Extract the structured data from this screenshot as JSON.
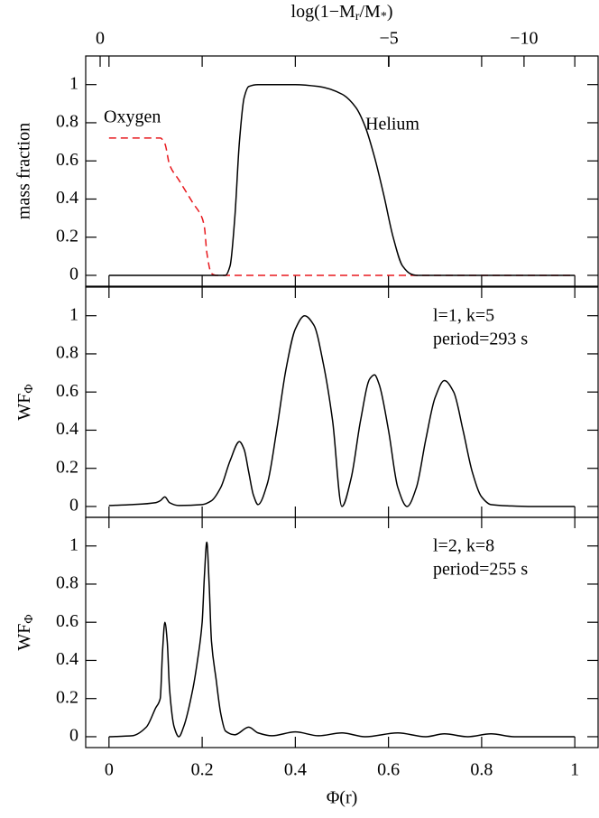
{
  "chart_data": [
    {
      "type": "line",
      "ylabel": "mass fraction",
      "x2label": [
        "log(1−M",
        "r",
        "/M",
        "*",
        ")"
      ],
      "x2ticks": [
        {
          "value": 0,
          "label": "0",
          "phi": -0.019
        },
        {
          "value": -5,
          "label": "−5",
          "phi": 0.601
        },
        {
          "value": -10,
          "label": "−10",
          "phi": 0.891
        }
      ],
      "xlim": [
        -0.05,
        1.05
      ],
      "ylim": [
        -0.057,
        1.15
      ],
      "xticks": [
        0,
        0.2,
        0.4,
        0.6,
        0.8,
        1
      ],
      "show_xtick_labels": false,
      "yticks": [
        0,
        0.2,
        0.4,
        0.6,
        0.8,
        1
      ],
      "x": [
        0,
        0.05,
        0.1,
        0.11,
        0.12,
        0.13,
        0.15,
        0.18,
        0.2,
        0.205,
        0.21,
        0.22,
        0.23,
        0.25,
        0.26,
        0.27,
        0.28,
        0.29,
        0.3,
        0.32,
        0.4,
        0.45,
        0.5,
        0.53,
        0.55,
        0.57,
        0.59,
        0.61,
        0.63,
        0.65,
        0.66,
        1.0
      ],
      "series": [
        {
          "name": "Oxygen",
          "color": "#e8191e",
          "linestyle": "dashed",
          "values": [
            0.72,
            0.72,
            0.72,
            0.72,
            0.69,
            0.58,
            0.5,
            0.38,
            0.3,
            0.25,
            0.12,
            0.01,
            0,
            0,
            0,
            0,
            0,
            0,
            0,
            0,
            0,
            0,
            0,
            0,
            0,
            0,
            0,
            0,
            0,
            0,
            0,
            0
          ]
        },
        {
          "name": "Helium",
          "color": "#000000",
          "linestyle": "solid",
          "values": [
            0,
            0,
            0,
            0,
            0,
            0,
            0,
            0,
            0,
            0,
            0,
            0,
            0,
            0,
            0.05,
            0.3,
            0.7,
            0.93,
            0.99,
            1.0,
            1.0,
            0.99,
            0.95,
            0.88,
            0.78,
            0.62,
            0.42,
            0.2,
            0.05,
            0.005,
            0,
            0
          ]
        }
      ]
    },
    {
      "type": "line",
      "ylabel": [
        "WF",
        "Φ"
      ],
      "annotations": [
        "l=1, k=5",
        "period=293 s"
      ],
      "xlim": [
        -0.05,
        1.05
      ],
      "ylim": [
        -0.057,
        1.15
      ],
      "xticks": [
        0,
        0.2,
        0.4,
        0.6,
        0.8,
        1
      ],
      "show_xtick_labels": false,
      "yticks": [
        0,
        0.2,
        0.4,
        0.6,
        0.8,
        1
      ],
      "x": [
        0,
        0.05,
        0.1,
        0.11,
        0.12,
        0.13,
        0.15,
        0.2,
        0.22,
        0.24,
        0.26,
        0.28,
        0.29,
        0.3,
        0.31,
        0.32,
        0.34,
        0.36,
        0.38,
        0.4,
        0.42,
        0.44,
        0.46,
        0.48,
        0.5,
        0.52,
        0.54,
        0.56,
        0.57,
        0.58,
        0.6,
        0.62,
        0.64,
        0.66,
        0.68,
        0.7,
        0.72,
        0.74,
        0.76,
        0.78,
        0.8,
        0.82,
        0.86,
        0.9,
        1.0
      ],
      "series": [
        {
          "color": "#000000",
          "linestyle": "solid",
          "values": [
            0.005,
            0.01,
            0.02,
            0.03,
            0.05,
            0.02,
            0.005,
            0.01,
            0.03,
            0.1,
            0.24,
            0.34,
            0.3,
            0.18,
            0.06,
            0.01,
            0.12,
            0.4,
            0.72,
            0.93,
            1.0,
            0.95,
            0.75,
            0.45,
            0.0,
            0.15,
            0.45,
            0.67,
            0.69,
            0.64,
            0.4,
            0.1,
            0.0,
            0.1,
            0.35,
            0.57,
            0.66,
            0.6,
            0.4,
            0.18,
            0.05,
            0.01,
            0.003,
            0,
            0
          ]
        }
      ]
    },
    {
      "type": "line",
      "ylabel": [
        "WF",
        "Φ"
      ],
      "annotations": [
        "l=2, k=8",
        "period=255 s"
      ],
      "xlabel": "Φ(r)",
      "xlim": [
        -0.05,
        1.05
      ],
      "ylim": [
        -0.057,
        1.15
      ],
      "xticks": [
        0,
        0.2,
        0.4,
        0.6,
        0.8,
        1
      ],
      "show_xtick_labels": true,
      "yticks": [
        0,
        0.2,
        0.4,
        0.6,
        0.8,
        1
      ],
      "x": [
        0,
        0.05,
        0.08,
        0.1,
        0.11,
        0.115,
        0.12,
        0.125,
        0.13,
        0.14,
        0.15,
        0.16,
        0.18,
        0.19,
        0.2,
        0.205,
        0.21,
        0.215,
        0.22,
        0.23,
        0.24,
        0.25,
        0.27,
        0.3,
        0.32,
        0.35,
        0.4,
        0.45,
        0.5,
        0.55,
        0.62,
        0.68,
        0.72,
        0.77,
        0.82,
        0.87,
        1.0
      ],
      "series": [
        {
          "color": "#000000",
          "linestyle": "solid",
          "values": [
            0,
            0.005,
            0.05,
            0.15,
            0.2,
            0.45,
            0.6,
            0.5,
            0.25,
            0.05,
            0.0,
            0.05,
            0.25,
            0.4,
            0.6,
            0.85,
            1.02,
            0.8,
            0.5,
            0.3,
            0.12,
            0.03,
            0.01,
            0.05,
            0.02,
            0.005,
            0.025,
            0.005,
            0.02,
            0.0,
            0.02,
            0.0,
            0.015,
            0.0,
            0.015,
            0.0,
            0
          ]
        }
      ]
    }
  ]
}
